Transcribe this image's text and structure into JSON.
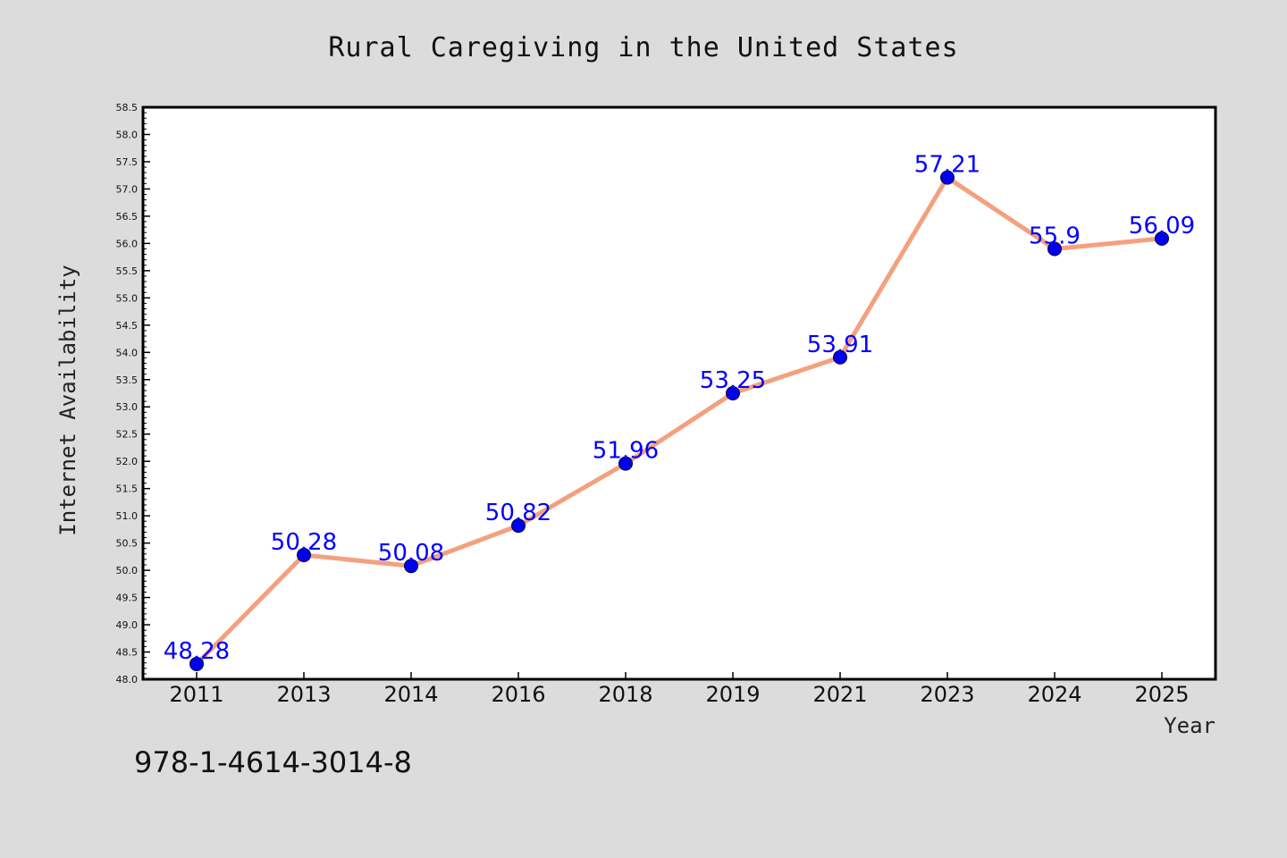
{
  "chart_data": {
    "type": "line",
    "title": "Rural Caregiving in the United States",
    "xlabel": "Year",
    "ylabel": "Internet Availability",
    "categories": [
      "2011",
      "2013",
      "2014",
      "2016",
      "2018",
      "2019",
      "2021",
      "2023",
      "2024",
      "2025"
    ],
    "series": [
      {
        "values": [
          48.28,
          50.28,
          50.08,
          50.82,
          51.96,
          53.25,
          53.91,
          57.21,
          55.9,
          56.09
        ],
        "labels": [
          "48.28",
          "50.28",
          "50.08",
          "50.82",
          "51.96",
          "53.25",
          "53.91",
          "57.21",
          "55.9",
          "56.09"
        ],
        "line_color": "#f4a07f",
        "marker_color": "#0000ee"
      }
    ],
    "ylim": [
      48.0,
      58.5
    ],
    "ytick_step": 0.5,
    "grid": false,
    "legend": "none"
  },
  "footer": {
    "isbn": "978-1-4614-3014-8"
  },
  "colors": {
    "background": "#dcdcdc",
    "plot_background": "#ffffff",
    "label_color": "#0000ff"
  }
}
